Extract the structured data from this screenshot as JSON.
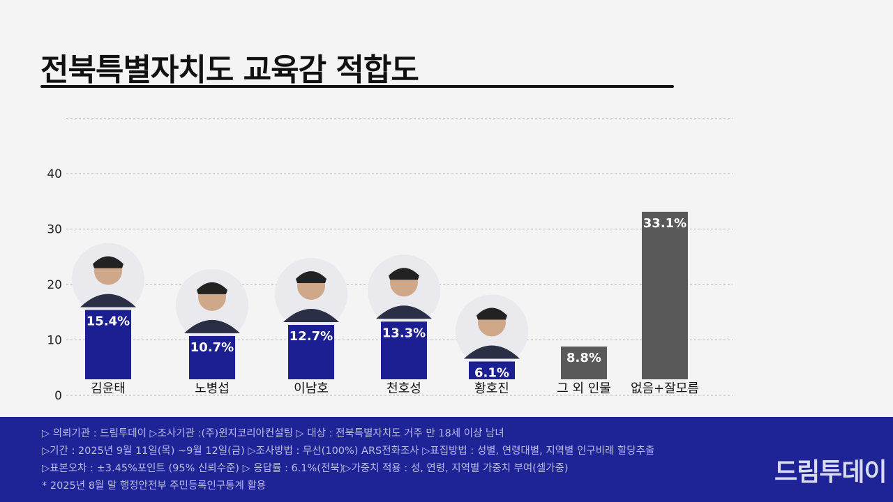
{
  "title": "전북특별자치도 교육감 적합도",
  "chart_data": {
    "type": "bar",
    "categories": [
      "김윤태",
      "노병섭",
      "이남호",
      "천호성",
      "황호진",
      "그 외 인물",
      "없음+잘모름"
    ],
    "values": [
      15.4,
      10.7,
      12.7,
      13.3,
      6.1,
      8.8,
      33.1
    ],
    "value_labels": [
      "15.4%",
      "10.7%",
      "12.7%",
      "13.3%",
      "6.1%",
      "8.8%",
      "33.1%"
    ],
    "colors": [
      "#1b1f92",
      "#1b1f92",
      "#1b1f92",
      "#1b1f92",
      "#1b1f92",
      "#595959",
      "#595959"
    ],
    "photos": [
      true,
      true,
      true,
      true,
      true,
      false,
      false
    ],
    "yticks": [
      0,
      10,
      20,
      30,
      40
    ],
    "ylim": [
      0,
      50
    ],
    "grid": true,
    "xlabel": "",
    "ylabel": ""
  },
  "footer": {
    "lines": [
      "▷ 의뢰기관 : 드림투데이  ▷조사기관 :(주)윈지코리아컨설팅  ▷ 대상 : 전북특별자치도 거주 만 18세 이상 남녀",
      "▷기간 : 2025년 9월 11일(목) ~9월 12일(금) ▷조사방법 : 무선(100%) ARS전화조사 ▷표집방법 : 성별, 연령대별, 지역별  인구비례 할당추출",
      "▷표본오차 :  ±3.45%포인트 (95% 신뢰수준)  ▷ 응답률 : 6.1%(전북)▷가중치 적용 : 성, 연령, 지역별 가중치 부여(셀가중)",
      "* 2025년 8월 말 행정안전부 주민등록인구통계 활용"
    ],
    "logo": "드림투데이"
  },
  "colors": {
    "bar_candidate": "#1b1f92",
    "bar_other": "#595959",
    "footer_bg": "#1e2396"
  }
}
